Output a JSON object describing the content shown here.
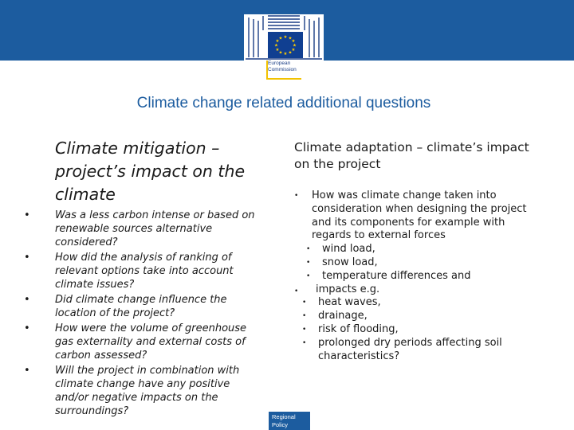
{
  "header": {
    "logo_text": "European\nCommission",
    "colors": {
      "band": "#1c5c9f",
      "flag": "#103f91",
      "stars": "#ffcc00",
      "rule": "#f2c200"
    }
  },
  "title": "Climate change related additional questions",
  "left": {
    "heading": "Climate mitigation – project’s impact on the climate",
    "bullet": "•",
    "items": [
      "Was a less carbon intense or based on renewable sources alternative considered?",
      "How did the analysis of ranking of relevant options take into account climate issues?",
      "Did climate change influence the location of the project?",
      "How were the volume of greenhouse gas externality and external costs of carbon assessed?",
      "Will the project in combination with climate change have any positive and/or negative impacts on the surroundings?"
    ]
  },
  "right": {
    "heading": "Climate adaptation – climate’s impact on the project",
    "bullet": "•",
    "item1": "How was climate change taken into consideration when designing the project and its components for example with regards to external forces",
    "item1_sub": [
      "wind load,",
      "snow load,",
      "temperature differences and"
    ],
    "item2": "impacts e.g.",
    "item2_sub": [
      "heat waves,",
      "drainage,",
      "risk of flooding,",
      "prolonged dry periods affecting soil characteristics?"
    ]
  },
  "footer": {
    "label": "Regional Policy"
  }
}
